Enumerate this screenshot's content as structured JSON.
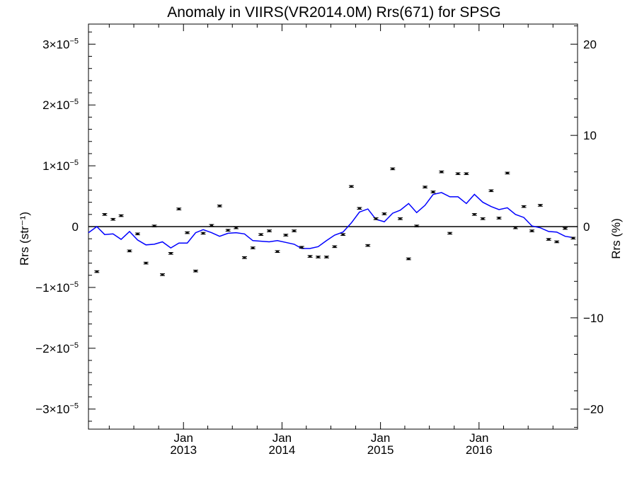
{
  "chart_data": {
    "type": "scatter",
    "title": "Anomaly in VIIRS(VR2014.0M) Rrs(671) for SPSG",
    "ylabel_left": "Rrs (str⁻¹)",
    "ylabel_right": "Rrs (%)",
    "xlabel": "",
    "grid": false,
    "legend": "none",
    "x_ticks": [
      {
        "month": "Jan",
        "year": "2013",
        "date": "2013-01-01"
      },
      {
        "month": "Jan",
        "year": "2014",
        "date": "2014-01-01"
      },
      {
        "month": "Jan",
        "year": "2015",
        "date": "2015-01-01"
      },
      {
        "month": "Jan",
        "year": "2016",
        "date": "2016-01-01"
      }
    ],
    "xlim": [
      "2012-01-15",
      "2016-12-31"
    ],
    "ylim_left": [
      -3.33e-05,
      3.33e-05
    ],
    "yticks_left": [
      {
        "mant": "3",
        "exp": "−5",
        "value": 3e-05
      },
      {
        "mant": "2",
        "exp": "−5",
        "value": 2e-05
      },
      {
        "mant": "1",
        "exp": "−5",
        "value": 1e-05
      },
      {
        "mant": "0",
        "exp": "",
        "value": 0
      },
      {
        "mant": "−1",
        "exp": "−5",
        "value": -1e-05
      },
      {
        "mant": "−2",
        "exp": "−5",
        "value": -2e-05
      },
      {
        "mant": "−3",
        "exp": "−5",
        "value": -3e-05
      }
    ],
    "ylim_right": [
      -22.2,
      22.2
    ],
    "yticks_right": [
      {
        "label": "20",
        "value": 20
      },
      {
        "label": "10",
        "value": 10
      },
      {
        "label": "0",
        "value": 0
      },
      {
        "label": "−10",
        "value": -10
      },
      {
        "label": "−20",
        "value": -20
      }
    ],
    "zero_line": 0,
    "colors": {
      "points": "#000000",
      "line": "#0000ff",
      "axes": "#000000"
    },
    "series": [
      {
        "type": "scatter_errorbar",
        "x": [
          "2012-02-15",
          "2012-03-15",
          "2012-04-15",
          "2012-05-15",
          "2012-06-15",
          "2012-07-15",
          "2012-08-15",
          "2012-09-15",
          "2012-10-15",
          "2012-11-15",
          "2012-12-15",
          "2013-01-15",
          "2013-02-15",
          "2013-03-15",
          "2013-04-15",
          "2013-05-15",
          "2013-06-15",
          "2013-07-15",
          "2013-08-15",
          "2013-09-15",
          "2013-10-15",
          "2013-11-15",
          "2013-12-15",
          "2014-01-15",
          "2014-02-15",
          "2014-03-15",
          "2014-04-15",
          "2014-05-15",
          "2014-06-15",
          "2014-07-15",
          "2014-08-15",
          "2014-09-15",
          "2014-10-15",
          "2014-11-15",
          "2014-12-15",
          "2015-01-15",
          "2015-02-15",
          "2015-03-15",
          "2015-04-15",
          "2015-05-15",
          "2015-06-15",
          "2015-07-15",
          "2015-08-15",
          "2015-09-15",
          "2015-10-15",
          "2015-11-15",
          "2015-12-15",
          "2016-01-15",
          "2016-02-15",
          "2016-03-15",
          "2016-04-15",
          "2016-05-15",
          "2016-06-15",
          "2016-07-15",
          "2016-08-15",
          "2016-09-15",
          "2016-10-15",
          "2016-11-15",
          "2016-12-15"
        ],
        "y": [
          -7.4e-06,
          2e-06,
          1.2e-06,
          1.8e-06,
          -4e-06,
          -1.2e-06,
          -6e-06,
          1e-07,
          -7.9e-06,
          -4.4e-06,
          2.9e-06,
          -1e-06,
          -7.3e-06,
          -1.1e-06,
          2e-07,
          3.4e-06,
          -6e-07,
          -2e-07,
          -5.1e-06,
          -3.5e-06,
          -1.3e-06,
          -7e-07,
          -4.1e-06,
          -1.4e-06,
          -7e-07,
          -3.4e-06,
          -4.9e-06,
          -5e-06,
          -5e-06,
          -3.3e-06,
          -1.3e-06,
          6.6e-06,
          3e-06,
          -3.1e-06,
          1.3e-06,
          2.1e-06,
          9.5e-06,
          1.3e-06,
          -5.3e-06,
          1e-07,
          6.5e-06,
          5.7e-06,
          9e-06,
          -1.1e-06,
          8.7e-06,
          8.7e-06,
          2e-06,
          1.3e-06,
          5.9e-06,
          1.4e-06,
          8.8e-06,
          -2e-07,
          3.3e-06,
          -7e-07,
          3.5e-06,
          -2.1e-06,
          -2.5e-06,
          -3e-07,
          -1.9e-06
        ],
        "err": 1.5e-07
      },
      {
        "type": "line",
        "x": [
          "2012-01-15",
          "2012-02-15",
          "2012-03-15",
          "2012-04-15",
          "2012-05-15",
          "2012-06-15",
          "2012-07-15",
          "2012-08-15",
          "2012-09-15",
          "2012-10-15",
          "2012-11-15",
          "2012-12-15",
          "2013-01-15",
          "2013-02-15",
          "2013-03-15",
          "2013-04-15",
          "2013-05-15",
          "2013-06-15",
          "2013-07-15",
          "2013-08-15",
          "2013-09-15",
          "2013-10-15",
          "2013-11-15",
          "2013-12-15",
          "2014-01-15",
          "2014-02-15",
          "2014-03-15",
          "2014-04-15",
          "2014-05-15",
          "2014-06-15",
          "2014-07-15",
          "2014-08-15",
          "2014-09-15",
          "2014-10-15",
          "2014-11-15",
          "2014-12-15",
          "2015-01-15",
          "2015-02-15",
          "2015-03-15",
          "2015-04-15",
          "2015-05-15",
          "2015-06-15",
          "2015-07-15",
          "2015-08-15",
          "2015-09-15",
          "2015-10-15",
          "2015-11-15",
          "2015-12-15",
          "2016-01-15",
          "2016-02-15",
          "2016-03-15",
          "2016-04-15",
          "2016-05-15",
          "2016-06-15",
          "2016-07-15",
          "2016-08-15",
          "2016-09-15",
          "2016-10-15",
          "2016-11-15",
          "2016-12-15"
        ],
        "y": [
          -1e-06,
          0.0,
          -1.3e-06,
          -1.2e-06,
          -2.1e-06,
          -8e-07,
          -2.2e-06,
          -3e-06,
          -2.9e-06,
          -2.5e-06,
          -3.5e-06,
          -2.7e-06,
          -2.7e-06,
          -1e-06,
          -5e-07,
          -1e-06,
          -1.6e-06,
          -1.1e-06,
          -1e-06,
          -1.2e-06,
          -2.3e-06,
          -2.4e-06,
          -2.5e-06,
          -2.3e-06,
          -2.6e-06,
          -2.9e-06,
          -3.6e-06,
          -3.6e-06,
          -3.3e-06,
          -2.3e-06,
          -1.4e-06,
          -9e-07,
          6e-07,
          2.4e-06,
          2.9e-06,
          1.2e-06,
          8e-07,
          2.2e-06,
          2.7e-06,
          3.8e-06,
          2.3e-06,
          3.5e-06,
          5.3e-06,
          5.6e-06,
          4.9e-06,
          4.9e-06,
          3.8e-06,
          5.3e-06,
          4e-06,
          3.3e-06,
          2.8e-06,
          3.1e-06,
          2e-06,
          1.5e-06,
          1e-07,
          -2e-07,
          -8e-07,
          -9e-07,
          -1.6e-06,
          -1.8e-06
        ]
      }
    ]
  }
}
